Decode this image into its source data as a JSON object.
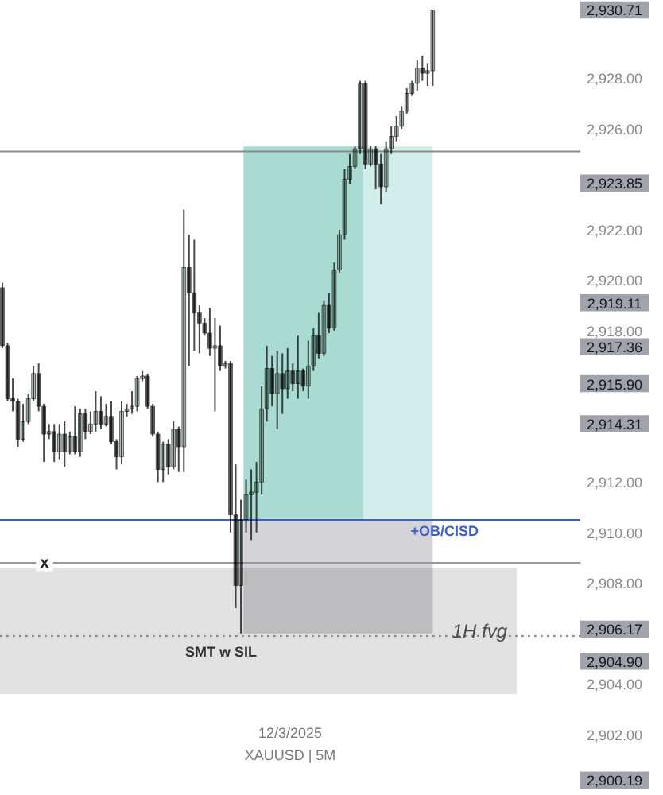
{
  "chart_data": {
    "type": "candlestick",
    "categories": [
      null,
      null,
      null,
      null,
      null,
      null,
      null,
      null,
      null,
      null,
      null,
      null,
      null,
      null,
      null,
      null,
      null,
      null,
      null,
      null,
      null,
      null,
      null,
      null,
      null,
      null,
      null,
      null,
      null,
      null,
      null,
      null,
      null,
      null,
      null,
      null,
      null,
      null,
      null,
      null,
      null,
      null,
      null,
      null,
      null,
      null,
      null,
      null,
      null,
      null,
      null,
      null,
      null,
      null,
      null,
      null,
      null,
      null,
      null,
      null,
      null,
      null,
      null,
      null,
      null,
      null,
      null,
      null,
      null,
      null,
      null,
      null,
      null,
      null,
      null,
      null,
      null,
      null,
      null,
      null,
      null,
      null,
      null,
      null,
      null,
      null,
      null,
      null,
      null,
      null,
      null,
      null,
      null,
      null,
      null,
      null,
      null,
      null,
      null,
      null,
      null,
      null,
      null,
      null,
      null,
      null,
      null,
      null,
      null,
      null,
      null,
      null
    ],
    "ohlc": [
      [
        2919.7,
        2919.9,
        2917.3,
        2917.4
      ],
      [
        2917.4,
        2917.5,
        2915.2,
        2915.3
      ],
      [
        2915.3,
        2916.1,
        2914.8,
        2915.2
      ],
      [
        2915.2,
        2915.3,
        2913.4,
        2913.7
      ],
      [
        2913.7,
        2915.1,
        2913.6,
        2914.4
      ],
      [
        2914.4,
        2915.5,
        2914.3,
        2915.3
      ],
      [
        2915.3,
        2916.6,
        2915.2,
        2916.3
      ],
      [
        2916.3,
        2916.7,
        2914.8,
        2915.0
      ],
      [
        2915.0,
        2915.1,
        2912.8,
        2913.9
      ],
      [
        2913.9,
        2914.3,
        2913.7,
        2914.0
      ],
      [
        2914.0,
        2914.3,
        2912.8,
        2913.2
      ],
      [
        2913.2,
        2914.3,
        2912.9,
        2913.9
      ],
      [
        2913.9,
        2914.4,
        2912.6,
        2913.2
      ],
      [
        2913.2,
        2914.0,
        2913.1,
        2913.8
      ],
      [
        2913.8,
        2915.0,
        2913.1,
        2913.2
      ],
      [
        2913.2,
        2914.9,
        2913.0,
        2914.7
      ],
      [
        2914.7,
        2914.9,
        2913.7,
        2914.0
      ],
      [
        2914.0,
        2914.8,
        2913.9,
        2914.3
      ],
      [
        2914.3,
        2915.6,
        2914.0,
        2914.8
      ],
      [
        2914.8,
        2915.4,
        2914.1,
        2914.3
      ],
      [
        2914.3,
        2915.1,
        2914.2,
        2914.6
      ],
      [
        2914.6,
        2915.2,
        2913.5,
        2913.6
      ],
      [
        2913.6,
        2913.7,
        2912.5,
        2913.0
      ],
      [
        2913.0,
        2915.2,
        2912.7,
        2914.8
      ],
      [
        2914.8,
        2915.1,
        2914.6,
        2914.9
      ],
      [
        2914.9,
        2915.6,
        2914.7,
        2915.0
      ],
      [
        2915.0,
        2916.2,
        2914.8,
        2916.1
      ],
      [
        2916.1,
        2916.4,
        2916.0,
        2916.2
      ],
      [
        2916.2,
        2916.3,
        2914.9,
        2915.0
      ],
      [
        2915.0,
        2915.1,
        2913.8,
        2913.9
      ],
      [
        2913.9,
        2914.0,
        2912.0,
        2912.5
      ],
      [
        2912.5,
        2913.6,
        2912.0,
        2913.5
      ],
      [
        2913.5,
        2913.7,
        2912.3,
        2912.6
      ],
      [
        2912.6,
        2914.4,
        2912.5,
        2914.1
      ],
      [
        2914.1,
        2914.2,
        2912.4,
        2913.4
      ],
      [
        2913.4,
        2922.8,
        2912.4,
        2920.5
      ],
      [
        2920.5,
        2921.8,
        2916.6,
        2919.5
      ],
      [
        2919.5,
        2921.6,
        2917.2,
        2918.7
      ],
      [
        2918.7,
        2919.0,
        2917.1,
        2918.3
      ],
      [
        2918.3,
        2918.5,
        2917.8,
        2917.9
      ],
      [
        2917.9,
        2918.9,
        2917.0,
        2917.3
      ],
      [
        2917.3,
        2918.5,
        2914.8,
        2917.4
      ],
      [
        2917.4,
        2918.2,
        2916.4,
        2916.6
      ],
      [
        2916.6,
        2916.8,
        2916.5,
        2916.7
      ],
      [
        2916.7,
        2916.8,
        2910.0,
        2910.7
      ],
      [
        2910.7,
        2912.7,
        2907.0,
        2907.9
      ],
      [
        2907.9,
        2911.3,
        2906.0,
        2910.5
      ],
      [
        2910.5,
        2912.1,
        2910.0,
        2911.5
      ],
      [
        2911.5,
        2912.5,
        2909.7,
        2911.6
      ],
      [
        2911.6,
        2912.8,
        2910.0,
        2912.0
      ],
      [
        2912.0,
        2915.8,
        2911.5,
        2914.9
      ],
      [
        2914.9,
        2917.4,
        2914.4,
        2916.5
      ],
      [
        2916.5,
        2917.0,
        2915.0,
        2915.5
      ],
      [
        2915.5,
        2917.2,
        2914.1,
        2916.3
      ],
      [
        2916.3,
        2917.1,
        2914.7,
        2915.7
      ],
      [
        2915.7,
        2917.3,
        2915.3,
        2916.4
      ],
      [
        2916.4,
        2916.7,
        2915.6,
        2915.9
      ],
      [
        2915.9,
        2917.8,
        2915.3,
        2916.4
      ],
      [
        2916.4,
        2916.5,
        2915.6,
        2915.8
      ],
      [
        2915.8,
        2917.6,
        2915.3,
        2916.6
      ],
      [
        2916.6,
        2918.1,
        2916.4,
        2917.8
      ],
      [
        2917.8,
        2918.7,
        2916.9,
        2917.1
      ],
      [
        2917.1,
        2919.2,
        2917.0,
        2919.0
      ],
      [
        2919.0,
        2919.5,
        2917.9,
        2918.1
      ],
      [
        2918.1,
        2920.7,
        2918.0,
        2920.4
      ],
      [
        2920.4,
        2922.0,
        2920.3,
        2921.8
      ],
      [
        2921.8,
        2924.4,
        2921.6,
        2924.0
      ],
      [
        2924.0,
        2925.0,
        2923.8,
        2924.5
      ],
      [
        2924.5,
        2925.3,
        2924.4,
        2925.2
      ],
      [
        2925.2,
        2927.9,
        2925.0,
        2927.8
      ],
      [
        2927.8,
        2927.9,
        2924.4,
        2924.6
      ],
      [
        2924.6,
        2925.3,
        2924.5,
        2925.2
      ],
      [
        2925.2,
        2925.3,
        2923.6,
        2924.6
      ],
      [
        2924.6,
        2925.0,
        2923.0,
        2923.7
      ],
      [
        2923.7,
        2925.5,
        2923.5,
        2925.2
      ],
      [
        2925.2,
        2926.1,
        2925.0,
        2925.7
      ],
      [
        2925.7,
        2926.5,
        2925.5,
        2926.1
      ],
      [
        2926.1,
        2926.9,
        2926.0,
        2926.7
      ],
      [
        2926.7,
        2927.6,
        2926.6,
        2927.4
      ],
      [
        2927.4,
        2927.9,
        2927.3,
        2927.8
      ],
      [
        2927.8,
        2928.7,
        2927.5,
        2928.4
      ],
      [
        2928.4,
        2928.9,
        2927.9,
        2928.2
      ],
      [
        2928.2,
        2928.6,
        2927.7,
        2928.3
      ],
      [
        2928.3,
        2930.71,
        2927.7,
        2930.71
      ],
      null,
      null,
      null,
      null,
      null,
      null,
      null,
      null,
      null,
      null,
      null,
      null,
      null,
      null,
      null,
      null,
      null,
      null,
      null,
      null,
      null,
      null,
      null,
      null,
      null,
      null,
      null,
      null
    ],
    "colors": [
      "#5e5e5e",
      "#5e5e5e",
      "#5e5e5e",
      "#5e5e5e",
      "#c3d7c9",
      "#c3d7c9",
      "#c3d7c9",
      "#5e5e5e",
      "#5e5e5e",
      "#c3d7c9",
      "#5e5e5e",
      "#c3d7c9",
      "#5e5e5e",
      "#c3d7c9",
      "#5e5e5e",
      "#c3d7c9",
      "#5e5e5e",
      "#c3d7c9",
      "#c3d7c9",
      "#5e5e5e",
      "#c3d7c9",
      "#5e5e5e",
      "#5e5e5e",
      "#c3d7c9",
      "#c3d7c9",
      "#c3d7c9",
      "#c3d7c9",
      "#c3d7c9",
      "#5e5e5e",
      "#5e5e5e",
      "#5e5e5e",
      "#c3d7c9",
      "#5e5e5e",
      "#c3d7c9",
      "#5e5e5e",
      "#c3d7c9",
      "#5e5e5e",
      "#5e5e5e",
      "#5e5e5e",
      "#5e5e5e",
      "#5e5e5e",
      "#c3d7c9",
      "#5e5e5e",
      "#c3d7c9",
      "#5e5e5e",
      "#5e5e5e",
      "#c3d7c9",
      "#c3d7c9",
      "#c3d7c9",
      "#c3d7c9",
      "#c3d7c9",
      "#c3d7c9",
      "#5e5e5e",
      "#c3d7c9",
      "#5e5e5e",
      "#c3d7c9",
      "#5e5e5e",
      "#c3d7c9",
      "#5e5e5e",
      "#c3d7c9",
      "#c3d7c9",
      "#5e5e5e",
      "#c3d7c9",
      "#5e5e5e",
      "#c3d7c9",
      "#c3d7c9",
      "#c3d7c9",
      "#c3d7c9",
      "#c3d7c9",
      "#c3d7c9",
      "#5e5e5e",
      "#c3d7c9",
      "#5e5e5e",
      "#5e5e5e",
      "#c3d7c9",
      "#c3d7c9",
      "#c3d7c9",
      "#c3d7c9",
      "#c3d7c9",
      "#c3d7c9",
      "#c3d7c9",
      "#5e5e5e",
      "#c3d7c9",
      "#c3d7c9",
      null,
      null,
      null,
      null,
      null,
      null,
      null,
      null,
      null,
      null,
      null,
      null,
      null,
      null,
      null,
      null,
      null,
      null,
      null,
      null,
      null,
      null,
      null,
      null,
      null,
      null,
      null,
      null
    ],
    "ylim": [
      2899.6,
      2931.1
    ],
    "yticks": [
      {
        "value": 2928,
        "label": "2,928.00"
      },
      {
        "value": 2926,
        "label": "2,926.00"
      },
      {
        "value": 2922,
        "label": "2,922.00"
      },
      {
        "value": 2920,
        "label": "2,920.00"
      },
      {
        "value": 2918,
        "label": "2,918.00"
      },
      {
        "value": 2912,
        "label": "2,912.00"
      },
      {
        "value": 2910,
        "label": "2,910.00"
      },
      {
        "value": 2908,
        "label": "2,908.00"
      },
      {
        "value": 2904,
        "label": "2,904.00"
      },
      {
        "value": 2902,
        "label": "2,902.00"
      }
    ],
    "y2lim": [
      2899.6,
      2931.1
    ],
    "y2ticks": [
      {
        "value": 2930.71,
        "label": "2,930.71"
      },
      {
        "value": 2923.85,
        "label": "2,923.85"
      },
      {
        "value": 2919.11,
        "label": "2,919.11"
      },
      {
        "value": 2917.36,
        "label": "2,917.36"
      },
      {
        "value": 2915.9,
        "label": "2,915.90"
      },
      {
        "value": 2914.31,
        "label": "2,914.31"
      },
      {
        "value": 2906.17,
        "label": "2,906.17"
      },
      {
        "value": 2904.9,
        "label": "2,904.90"
      },
      {
        "value": 2900.19,
        "label": "2,900.19"
      }
    ],
    "bands": [
      {
        "axis": "y",
        "from": 2910.5,
        "to": 2925.3,
        "color": "#a9dbd2"
      },
      {
        "axis": "y",
        "from": 2910.5,
        "to": 2925.3,
        "color": "#d2eeea"
      },
      {
        "axis": "y",
        "from": 2906.0,
        "to": 2910.5,
        "color": "#d5d5d9"
      },
      {
        "axis": "y",
        "from": 2903.6,
        "to": 2908.6,
        "label": "1H fvg",
        "color": "#e2e2e2"
      }
    ],
    "ref_lines": [
      {
        "axis": "y",
        "value": 2925.1,
        "color": "#8c8c8c"
      },
      {
        "axis": "y",
        "value": 2910.5,
        "label": "+OB/CISD",
        "color": "#3f5fc6"
      },
      {
        "axis": "y",
        "value": 2908.8,
        "label": "x",
        "color": "#9a9a9a"
      },
      {
        "axis": "y",
        "value": 2905.9,
        "label": "SMT w SIL",
        "color": "#8c8c8c",
        "line_style": "dotted"
      }
    ],
    "annotations": [
      "12/3/2025",
      "XAUUSD | 5M"
    ]
  }
}
